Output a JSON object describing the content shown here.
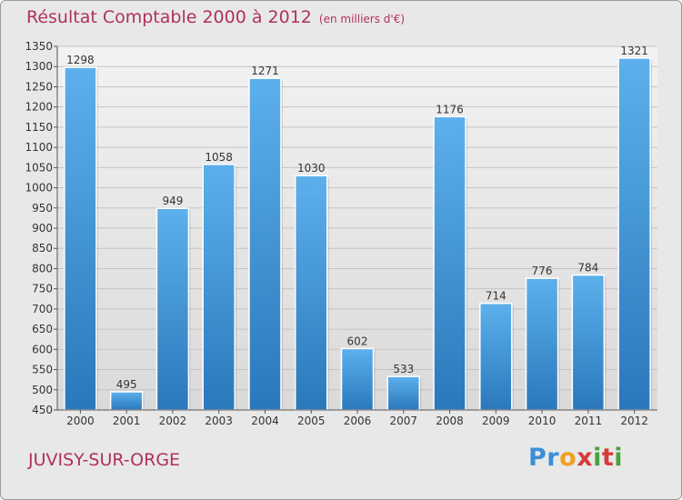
{
  "chart_data": {
    "type": "bar",
    "title": "Résultat Comptable 2000 à 2012",
    "subtitle": "(en milliers d'€)",
    "categories": [
      "2000",
      "2001",
      "2002",
      "2003",
      "2004",
      "2005",
      "2006",
      "2007",
      "2008",
      "2009",
      "2010",
      "2011",
      "2012"
    ],
    "values": [
      1298,
      495,
      949,
      1058,
      1271,
      1030,
      602,
      533,
      1176,
      714,
      776,
      784,
      1321
    ],
    "ylim": [
      450,
      1350
    ],
    "yticks": [
      450,
      500,
      550,
      600,
      650,
      700,
      750,
      800,
      850,
      900,
      950,
      1000,
      1050,
      1100,
      1150,
      1200,
      1250,
      1300,
      1350
    ],
    "xlabel": "",
    "ylabel": "",
    "grid": true,
    "bar_color": "#3d94d6"
  },
  "location": "JUVISY-SUR-ORGE",
  "logo_text": "Proxiti",
  "colors": {
    "title": "#b03060",
    "background": "#e8e8e8"
  }
}
